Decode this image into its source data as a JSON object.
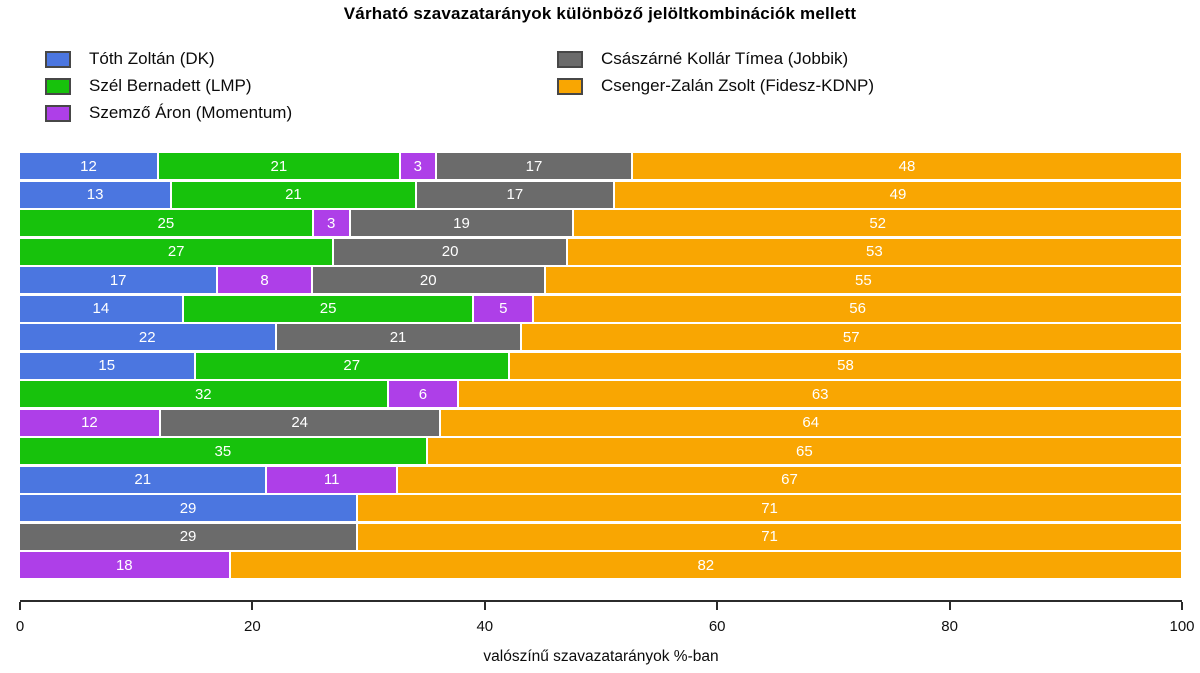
{
  "title": "Várható szavazatarányok különböző jelöltkombinációk mellett",
  "xlabel": "valószínű szavazatarányok %-ban",
  "chart_data": {
    "type": "bar",
    "orientation": "horizontal",
    "stacked": true,
    "title": "Várható szavazatarányok különböző jelöltkombinációk mellett",
    "xlabel": "valószínű szavazatarányok %-ban",
    "xlim": [
      0,
      100
    ],
    "x_ticks": [
      0,
      20,
      40,
      60,
      80,
      100
    ],
    "grid": false,
    "legend_position": "top",
    "series": [
      {
        "name": "Tóth Zoltán (DK)",
        "color": "#4B76E0"
      },
      {
        "name": "Szél Bernadett (LMP)",
        "color": "#17C20C"
      },
      {
        "name": "Szemző Áron (Momentum)",
        "color": "#AE3FE8"
      },
      {
        "name": "Császárné Kollár Tímea (Jobbik)",
        "color": "#6B6B6B"
      },
      {
        "name": "Csenger-Zalán Zsolt (Fidesz-KDNP)",
        "color": "#F9A602"
      }
    ],
    "rows": [
      [
        12,
        21,
        3,
        17,
        48
      ],
      [
        13,
        21,
        0,
        17,
        49
      ],
      [
        0,
        25,
        3,
        19,
        52
      ],
      [
        0,
        27,
        0,
        20,
        53
      ],
      [
        17,
        0,
        8,
        20,
        55
      ],
      [
        14,
        25,
        5,
        0,
        56
      ],
      [
        22,
        0,
        0,
        21,
        57
      ],
      [
        15,
        27,
        0,
        0,
        58
      ],
      [
        0,
        32,
        6,
        0,
        63
      ],
      [
        0,
        0,
        12,
        24,
        64
      ],
      [
        0,
        35,
        0,
        0,
        65
      ],
      [
        21,
        0,
        11,
        0,
        67
      ],
      [
        29,
        0,
        0,
        0,
        71
      ],
      [
        0,
        0,
        0,
        29,
        71
      ],
      [
        0,
        0,
        18,
        0,
        82
      ]
    ],
    "bar_label_color": "#FFFFFF"
  }
}
